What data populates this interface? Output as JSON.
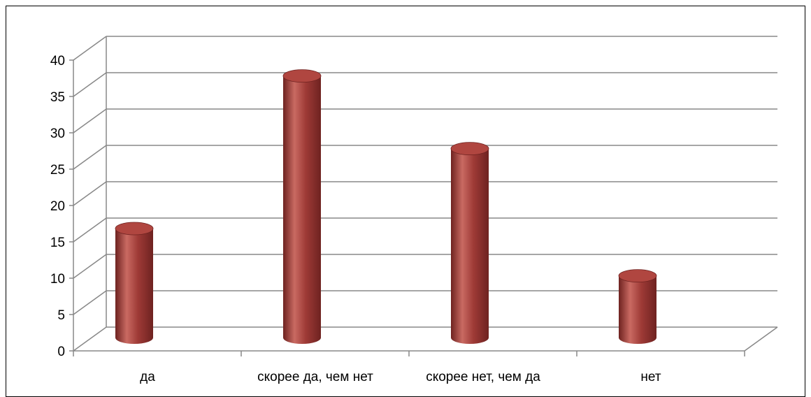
{
  "chart_data": {
    "type": "bar",
    "style": "3d-cylinder",
    "categories": [
      "да",
      "скорее да, чем нет",
      "скорее нет, чем да",
      "нет"
    ],
    "values": [
      15,
      36,
      26,
      8.5
    ],
    "ylim": [
      0,
      40
    ],
    "yticks": [
      "0",
      "5",
      "10",
      "15",
      "20",
      "25",
      "30",
      "35",
      "40"
    ],
    "grid": true,
    "legend": "none",
    "colors": {
      "bar": "#9e3a36",
      "bar_light": "#c96a62",
      "bar_dark": "#6e2220",
      "bar_top": "#b04640",
      "grid": "#888888",
      "axis": "#888888",
      "frame": "#000000"
    }
  }
}
